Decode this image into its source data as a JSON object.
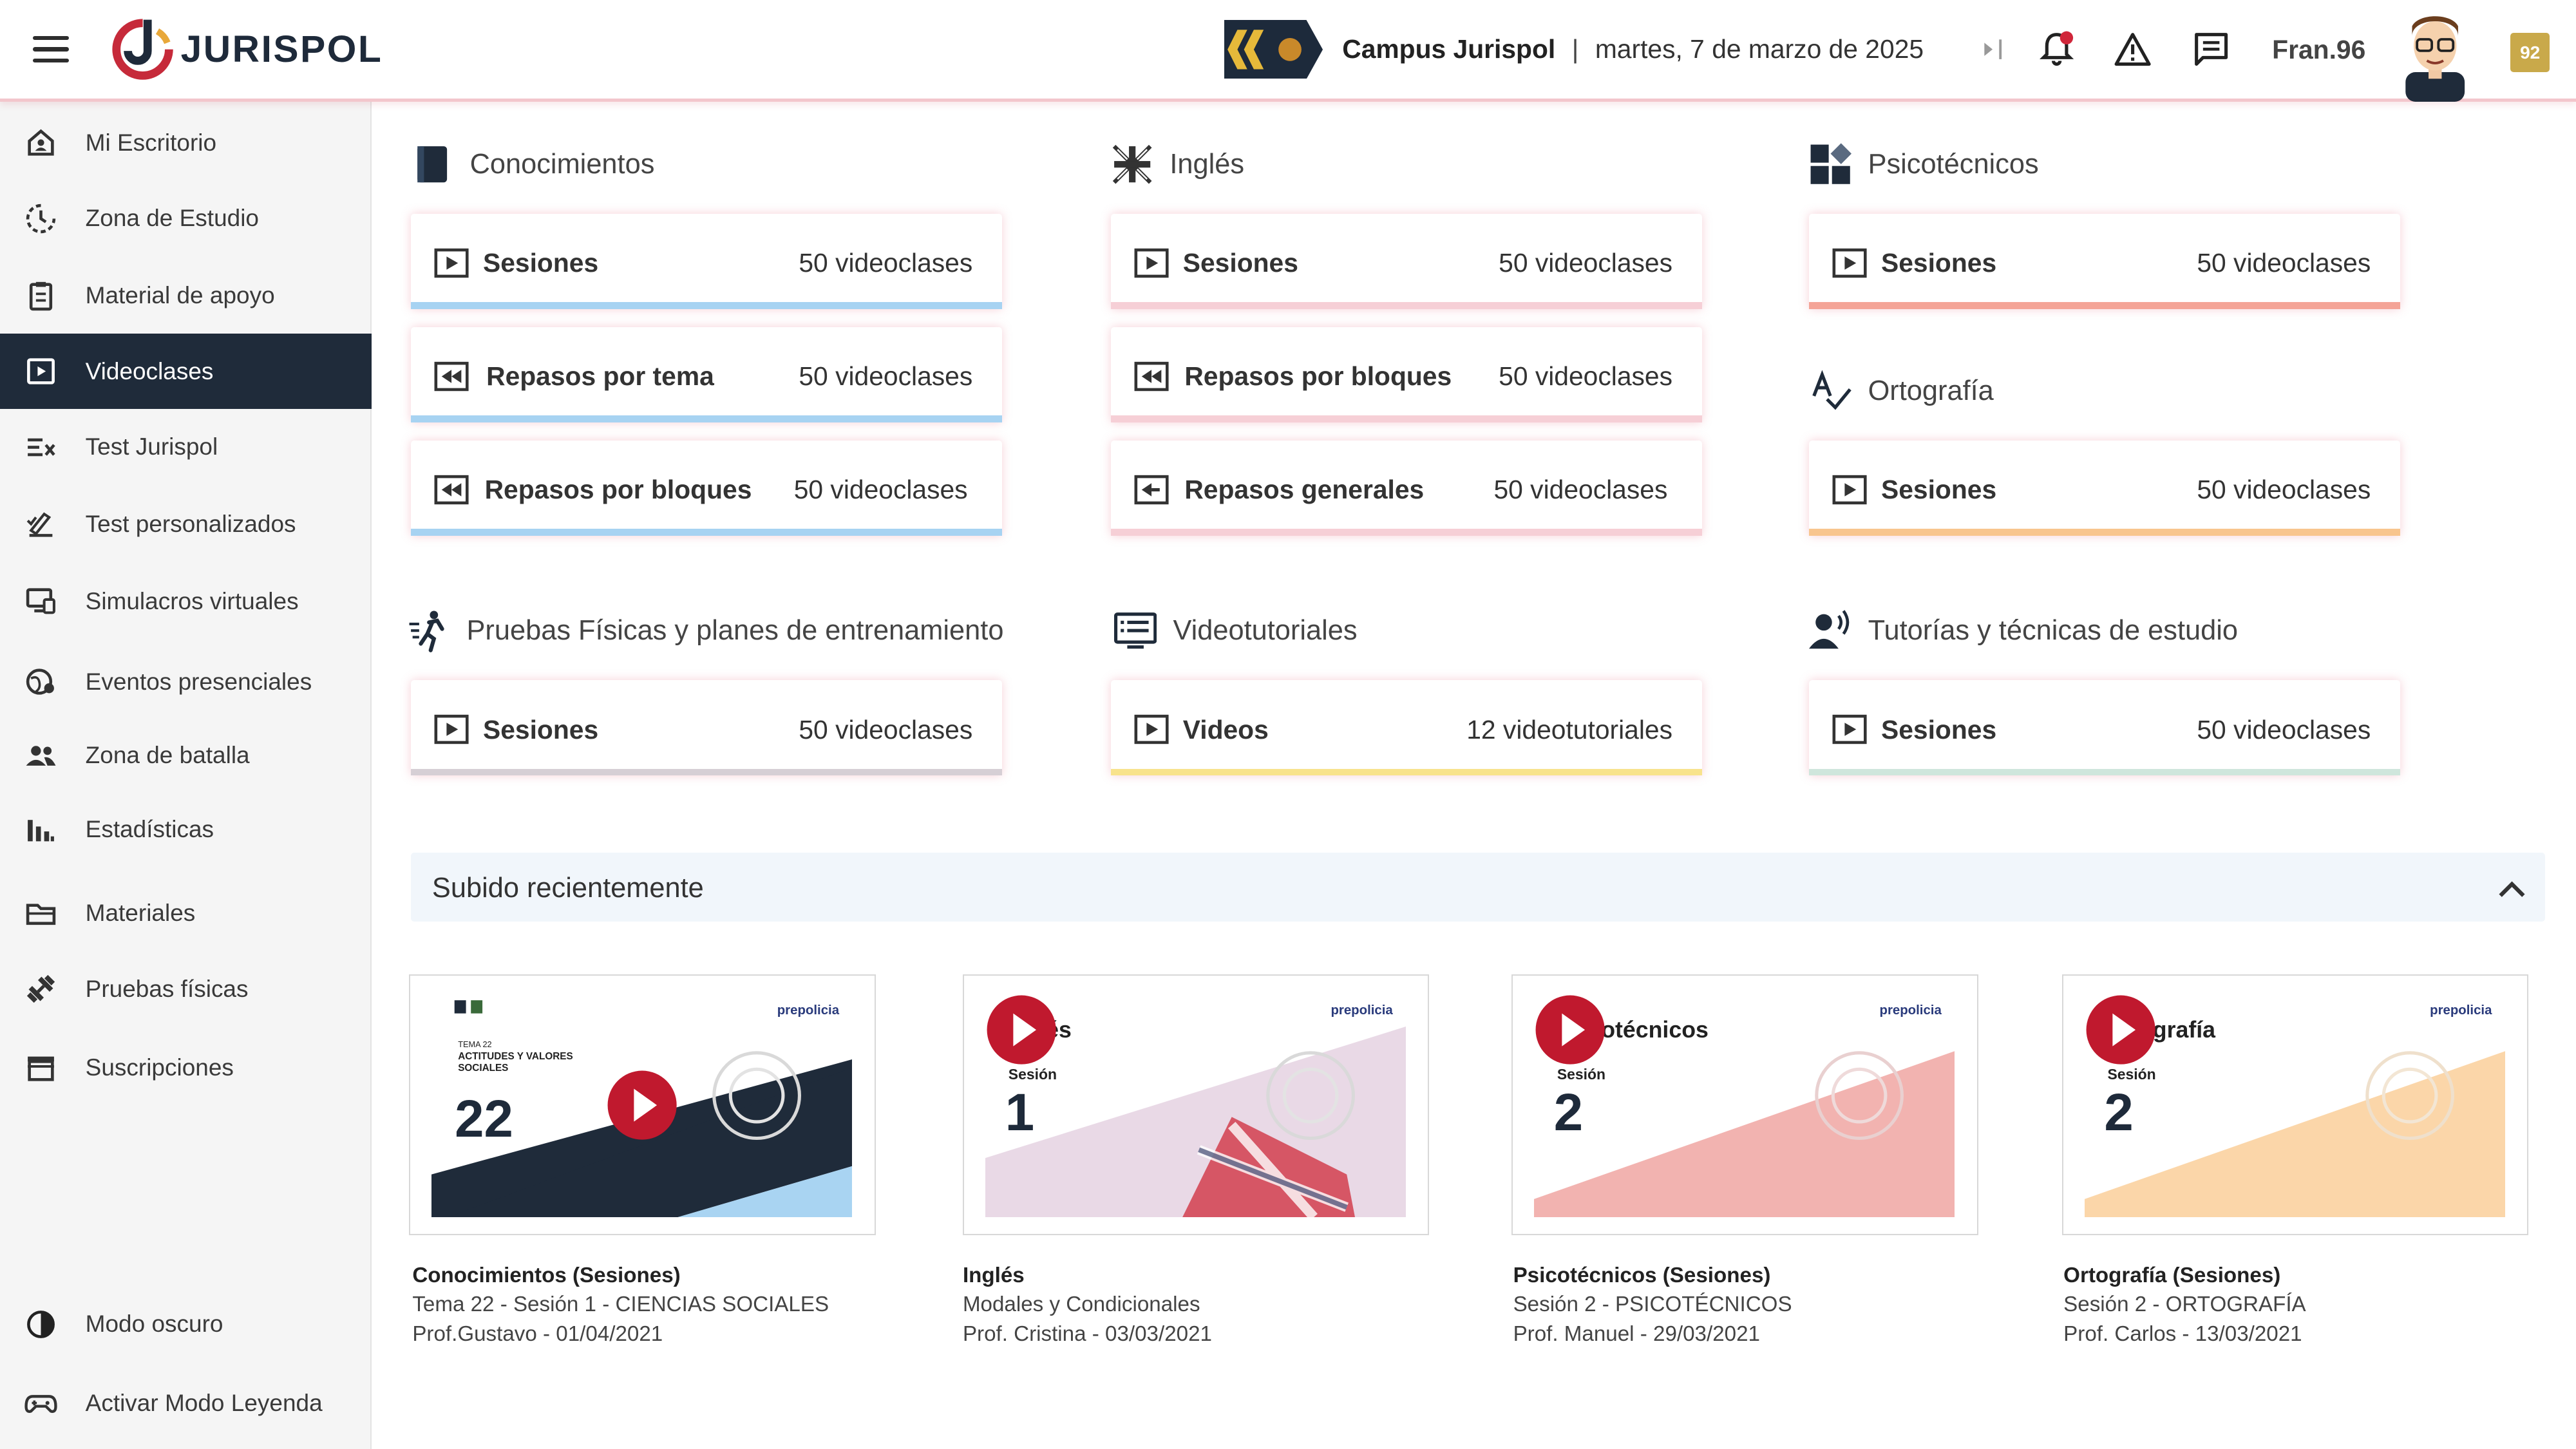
{
  "header": {
    "brand": "JURISPOL",
    "campus_name": "Campus Jurispol",
    "separator": "|",
    "date": "martes, 7 de marzo de 2025",
    "username": "Fran.96",
    "level": "92",
    "colors": {
      "accent": "#c62a3a",
      "dark": "#1f2b3a",
      "gold": "#c9a94a"
    }
  },
  "sidebar": {
    "items": [
      {
        "label": "Mi Escritorio",
        "icon": "home-icon"
      },
      {
        "label": "Zona de Estudio",
        "icon": "study-clock-icon"
      },
      {
        "label": "Material de apoyo",
        "icon": "clipboard-icon"
      },
      {
        "label": "Videoclases",
        "icon": "video-play-icon",
        "active": true
      },
      {
        "label": "Test Jurispol",
        "icon": "test-list-icon"
      },
      {
        "label": "Test personalizados",
        "icon": "custom-test-icon"
      },
      {
        "label": "Simulacros virtuales",
        "icon": "simulation-icon"
      },
      {
        "label": "Eventos presenciales",
        "icon": "globe-event-icon"
      },
      {
        "label": "Zona de batalla",
        "icon": "battle-people-icon"
      },
      {
        "label": "Estadísticas",
        "icon": "stats-icon"
      },
      {
        "label": "Materiales",
        "icon": "folder-icon"
      },
      {
        "label": "Pruebas físicas",
        "icon": "dumbbell-icon"
      },
      {
        "label": "Suscripciones",
        "icon": "store-icon"
      }
    ],
    "bottom": [
      {
        "label": "Modo oscuro",
        "icon": "dark-mode-icon"
      },
      {
        "label": "Activar Modo Leyenda",
        "icon": "gamepad-icon"
      }
    ]
  },
  "sections": {
    "conocimientos": {
      "title": "Conocimientos",
      "cards": [
        {
          "title": "Sesiones",
          "count": "50 videoclases"
        },
        {
          "title": "Repasos por tema",
          "count": "50 videoclases"
        },
        {
          "title": "Repasos por bloques",
          "count": "50 videoclases"
        }
      ]
    },
    "ingles": {
      "title": "Inglés",
      "cards": [
        {
          "title": "Sesiones",
          "count": "50 videoclases"
        },
        {
          "title": "Repasos por bloques",
          "count": "50 videoclases"
        },
        {
          "title": "Repasos generales",
          "count": "50 videoclases"
        }
      ]
    },
    "psicotecnicos": {
      "title": "Psicotécnicos",
      "cards": [
        {
          "title": "Sesiones",
          "count": "50 videoclases"
        }
      ]
    },
    "ortografia": {
      "title": "Ortografía",
      "cards": [
        {
          "title": "Sesiones",
          "count": "50 videoclases"
        }
      ]
    },
    "pruebas": {
      "title": "Pruebas Físicas y planes de entrenamiento",
      "cards": [
        {
          "title": "Sesiones",
          "count": "50 videoclases"
        }
      ]
    },
    "videotutoriales": {
      "title": "Videotutoriales",
      "cards": [
        {
          "title": "Videos",
          "count": "12 videotutoriales"
        }
      ]
    },
    "tutorias": {
      "title": "Tutorías y técnicas de estudio",
      "cards": [
        {
          "title": "Sesiones",
          "count": "50 videoclases"
        }
      ]
    }
  },
  "recent": {
    "title": "Subido recientemente",
    "videos": [
      {
        "thumb_title": "ACTITUDES Y VALORES SOCIALES",
        "thumb_tema": "TEMA 22",
        "thumb_num": "22",
        "title": "Conocimientos (Sesiones)",
        "line2": "Tema 22 - Sesión 1 - CIENCIAS SOCIALES",
        "line3": "Prof.Gustavo - 01/04/2021"
      },
      {
        "thumb_subject": "Inglés",
        "thumb_sesion": "Sesión",
        "thumb_num": "1",
        "title": "Inglés",
        "line2": "Modales y Condicionales",
        "line3": "Prof. Cristina - 03/03/2021"
      },
      {
        "thumb_subject": "Psicotécnicos",
        "thumb_sesion": "Sesión",
        "thumb_num": "2",
        "title": "Psicotécnicos (Sesiones)",
        "line2": "Sesión 2 - PSICOTÉCNICOS",
        "line3": "Prof. Manuel - 29/03/2021"
      },
      {
        "thumb_subject": "Ortografía",
        "thumb_sesion": "Sesión",
        "thumb_num": "2",
        "title": "Ortografía (Sesiones)",
        "line2": "Sesión 2 - ORTOGRAFÍA",
        "line3": "Prof. Carlos - 13/03/2021"
      }
    ],
    "thumb_brand": "prepolicia"
  }
}
